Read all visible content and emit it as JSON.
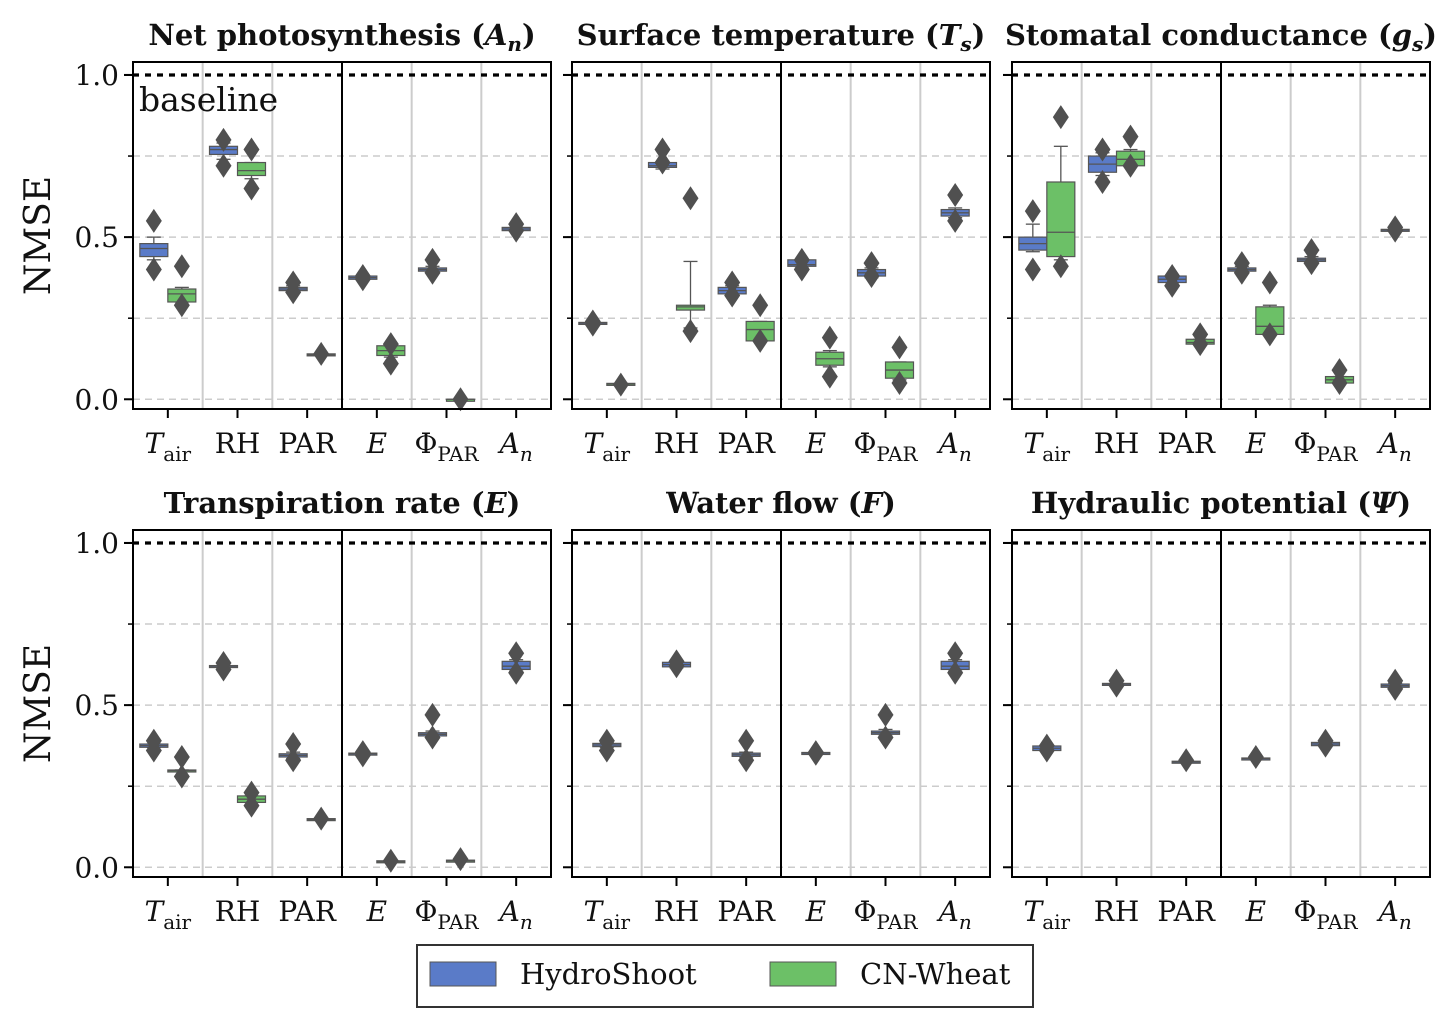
{
  "chart_data": {
    "type": "box",
    "figure": {
      "ylabel": "NMSE",
      "ylim": [
        -0.03,
        1.04
      ],
      "yticks": [
        0.0,
        0.5,
        1.0
      ],
      "ytick_labels": [
        "0.0",
        "0.5",
        "1.0"
      ],
      "minor_gridlines": [
        0.0,
        0.25,
        0.5,
        0.75
      ],
      "baseline": 1.0,
      "baseline_label": "baseline",
      "categories": [
        {
          "base": "T",
          "sub": "air",
          "italic": true
        },
        {
          "base": "RH",
          "sub": "",
          "italic": false
        },
        {
          "base": "PAR",
          "sub": "",
          "italic": false
        },
        {
          "base": "E",
          "sub": "",
          "italic": true
        },
        {
          "base": "Φ",
          "sub": "PAR",
          "italic": false
        },
        {
          "base": "A",
          "sub": "n",
          "italic": true
        }
      ],
      "legend": {
        "position": "bottom-center",
        "entries": [
          {
            "name": "HydroShoot",
            "color": "#5a7bc8"
          },
          {
            "name": "CN-Wheat",
            "color": "#6cc067"
          }
        ]
      },
      "colors": {
        "HydroShoot": "#5a7bc8",
        "CN-Wheat": "#6cc067",
        "whisker": "#555555",
        "outlier": "#505050",
        "grid": "#cccccc"
      }
    },
    "panels": [
      {
        "title": "Net photosynthesis (",
        "title_sym": "A",
        "title_sub": "n",
        "title_end": ")",
        "show_baseline_label": true,
        "show_ylabel": true,
        "show_yticklabels": true,
        "boxes": [
          {
            "cat": 0,
            "model": "HydroShoot",
            "q1": 0.44,
            "med": 0.465,
            "q3": 0.48,
            "wlo": 0.43,
            "whi": 0.5,
            "outliers": [
              0.55,
              0.4
            ]
          },
          {
            "cat": 0,
            "model": "CN-Wheat",
            "q1": 0.3,
            "med": 0.325,
            "q3": 0.34,
            "wlo": 0.3,
            "whi": 0.345,
            "outliers": [
              0.41,
              0.29
            ]
          },
          {
            "cat": 1,
            "model": "HydroShoot",
            "q1": 0.755,
            "med": 0.77,
            "q3": 0.78,
            "wlo": 0.74,
            "whi": 0.79,
            "outliers": [
              0.8,
              0.72
            ]
          },
          {
            "cat": 1,
            "model": "CN-Wheat",
            "q1": 0.69,
            "med": 0.705,
            "q3": 0.73,
            "wlo": 0.68,
            "whi": 0.73,
            "outliers": [
              0.77,
              0.65
            ]
          },
          {
            "cat": 2,
            "model": "HydroShoot",
            "q1": 0.335,
            "med": 0.34,
            "q3": 0.345,
            "wlo": 0.33,
            "whi": 0.35,
            "outliers": [
              0.36,
              0.33
            ]
          },
          {
            "cat": 2,
            "model": "CN-Wheat",
            "q1": 0.135,
            "med": 0.137,
            "q3": 0.14,
            "wlo": 0.135,
            "whi": 0.14,
            "outliers": [
              0.14
            ]
          },
          {
            "cat": 3,
            "model": "HydroShoot",
            "q1": 0.37,
            "med": 0.375,
            "q3": 0.38,
            "wlo": 0.37,
            "whi": 0.38,
            "outliers": [
              0.38,
              0.37
            ]
          },
          {
            "cat": 3,
            "model": "CN-Wheat",
            "q1": 0.135,
            "med": 0.15,
            "q3": 0.165,
            "wlo": 0.13,
            "whi": 0.17,
            "outliers": [
              0.17,
              0.11
            ]
          },
          {
            "cat": 4,
            "model": "HydroShoot",
            "q1": 0.395,
            "med": 0.4,
            "q3": 0.405,
            "wlo": 0.39,
            "whi": 0.41,
            "outliers": [
              0.43,
              0.39
            ]
          },
          {
            "cat": 4,
            "model": "CN-Wheat",
            "q1": 0.0,
            "med": 0.0,
            "q3": 0.0,
            "wlo": 0.0,
            "whi": 0.0,
            "outliers": [
              0.0
            ]
          },
          {
            "cat": 5,
            "model": "HydroShoot",
            "q1": 0.52,
            "med": 0.525,
            "q3": 0.53,
            "wlo": 0.52,
            "whi": 0.53,
            "outliers": [
              0.54,
              0.52
            ]
          }
        ]
      },
      {
        "title": "Surface temperature (",
        "title_sym": "T",
        "title_sub": "s",
        "title_end": ")",
        "show_baseline_label": false,
        "show_ylabel": false,
        "show_yticklabels": false,
        "boxes": [
          {
            "cat": 0,
            "model": "HydroShoot",
            "q1": 0.233,
            "med": 0.235,
            "q3": 0.237,
            "wlo": 0.233,
            "whi": 0.237,
            "outliers": [
              0.24,
              0.23
            ]
          },
          {
            "cat": 0,
            "model": "CN-Wheat",
            "q1": 0.045,
            "med": 0.047,
            "q3": 0.049,
            "wlo": 0.045,
            "whi": 0.049,
            "outliers": [
              0.045
            ]
          },
          {
            "cat": 1,
            "model": "HydroShoot",
            "q1": 0.715,
            "med": 0.72,
            "q3": 0.73,
            "wlo": 0.71,
            "whi": 0.73,
            "outliers": [
              0.77,
              0.73
            ]
          },
          {
            "cat": 1,
            "model": "CN-Wheat",
            "q1": 0.275,
            "med": 0.285,
            "q3": 0.29,
            "wlo": 0.22,
            "whi": 0.425,
            "outliers": [
              0.62,
              0.21
            ]
          },
          {
            "cat": 2,
            "model": "HydroShoot",
            "q1": 0.325,
            "med": 0.335,
            "q3": 0.345,
            "wlo": 0.32,
            "whi": 0.35,
            "outliers": [
              0.36,
              0.32
            ]
          },
          {
            "cat": 2,
            "model": "CN-Wheat",
            "q1": 0.18,
            "med": 0.215,
            "q3": 0.24,
            "wlo": 0.18,
            "whi": 0.24,
            "outliers": [
              0.29,
              0.18
            ]
          },
          {
            "cat": 3,
            "model": "HydroShoot",
            "q1": 0.41,
            "med": 0.415,
            "q3": 0.43,
            "wlo": 0.405,
            "whi": 0.43,
            "outliers": [
              0.43,
              0.4
            ]
          },
          {
            "cat": 3,
            "model": "CN-Wheat",
            "q1": 0.105,
            "med": 0.125,
            "q3": 0.145,
            "wlo": 0.1,
            "whi": 0.15,
            "outliers": [
              0.19,
              0.07
            ]
          },
          {
            "cat": 4,
            "model": "HydroShoot",
            "q1": 0.38,
            "med": 0.39,
            "q3": 0.4,
            "wlo": 0.375,
            "whi": 0.405,
            "outliers": [
              0.42,
              0.38
            ]
          },
          {
            "cat": 4,
            "model": "CN-Wheat",
            "q1": 0.065,
            "med": 0.09,
            "q3": 0.115,
            "wlo": 0.06,
            "whi": 0.115,
            "outliers": [
              0.16,
              0.05
            ]
          },
          {
            "cat": 5,
            "model": "HydroShoot",
            "q1": 0.565,
            "med": 0.575,
            "q3": 0.585,
            "wlo": 0.56,
            "whi": 0.59,
            "outliers": [
              0.63,
              0.55
            ]
          }
        ]
      },
      {
        "title": "Stomatal conductance (",
        "title_sym": "g",
        "title_sub": "s",
        "title_end": ")",
        "show_baseline_label": false,
        "show_ylabel": false,
        "show_yticklabels": false,
        "boxes": [
          {
            "cat": 0,
            "model": "HydroShoot",
            "q1": 0.46,
            "med": 0.48,
            "q3": 0.5,
            "wlo": 0.455,
            "whi": 0.54,
            "outliers": [
              0.58,
              0.4
            ]
          },
          {
            "cat": 0,
            "model": "CN-Wheat",
            "q1": 0.44,
            "med": 0.515,
            "q3": 0.67,
            "wlo": 0.43,
            "whi": 0.78,
            "outliers": [
              0.87,
              0.41
            ]
          },
          {
            "cat": 1,
            "model": "HydroShoot",
            "q1": 0.7,
            "med": 0.725,
            "q3": 0.75,
            "wlo": 0.69,
            "whi": 0.76,
            "outliers": [
              0.77,
              0.67
            ]
          },
          {
            "cat": 1,
            "model": "CN-Wheat",
            "q1": 0.72,
            "med": 0.74,
            "q3": 0.765,
            "wlo": 0.72,
            "whi": 0.77,
            "outliers": [
              0.81,
              0.72
            ]
          },
          {
            "cat": 2,
            "model": "HydroShoot",
            "q1": 0.36,
            "med": 0.37,
            "q3": 0.38,
            "wlo": 0.36,
            "whi": 0.38,
            "outliers": [
              0.38,
              0.35
            ]
          },
          {
            "cat": 2,
            "model": "CN-Wheat",
            "q1": 0.17,
            "med": 0.175,
            "q3": 0.185,
            "wlo": 0.17,
            "whi": 0.185,
            "outliers": [
              0.2,
              0.17
            ]
          },
          {
            "cat": 3,
            "model": "HydroShoot",
            "q1": 0.395,
            "med": 0.4,
            "q3": 0.405,
            "wlo": 0.39,
            "whi": 0.41,
            "outliers": [
              0.42,
              0.39
            ]
          },
          {
            "cat": 3,
            "model": "CN-Wheat",
            "q1": 0.2,
            "med": 0.225,
            "q3": 0.285,
            "wlo": 0.2,
            "whi": 0.29,
            "outliers": [
              0.36,
              0.2
            ]
          },
          {
            "cat": 4,
            "model": "HydroShoot",
            "q1": 0.425,
            "med": 0.43,
            "q3": 0.435,
            "wlo": 0.42,
            "whi": 0.44,
            "outliers": [
              0.46,
              0.42
            ]
          },
          {
            "cat": 4,
            "model": "CN-Wheat",
            "q1": 0.05,
            "med": 0.06,
            "q3": 0.07,
            "wlo": 0.05,
            "whi": 0.07,
            "outliers": [
              0.09,
              0.05
            ]
          },
          {
            "cat": 5,
            "model": "HydroShoot",
            "q1": 0.52,
            "med": 0.522,
            "q3": 0.524,
            "wlo": 0.52,
            "whi": 0.524,
            "outliers": [
              0.53,
              0.52
            ]
          }
        ]
      },
      {
        "title": "Transpiration rate (",
        "title_sym": "E",
        "title_sub": "",
        "title_end": ")",
        "show_baseline_label": false,
        "show_ylabel": true,
        "show_yticklabels": true,
        "boxes": [
          {
            "cat": 0,
            "model": "HydroShoot",
            "q1": 0.37,
            "med": 0.375,
            "q3": 0.38,
            "wlo": 0.37,
            "whi": 0.38,
            "outliers": [
              0.39,
              0.36
            ]
          },
          {
            "cat": 0,
            "model": "CN-Wheat",
            "q1": 0.295,
            "med": 0.298,
            "q3": 0.3,
            "wlo": 0.295,
            "whi": 0.3,
            "outliers": [
              0.34,
              0.28
            ]
          },
          {
            "cat": 1,
            "model": "HydroShoot",
            "q1": 0.618,
            "med": 0.62,
            "q3": 0.622,
            "wlo": 0.618,
            "whi": 0.622,
            "outliers": [
              0.63,
              0.61
            ]
          },
          {
            "cat": 1,
            "model": "CN-Wheat",
            "q1": 0.2,
            "med": 0.21,
            "q3": 0.22,
            "wlo": 0.2,
            "whi": 0.22,
            "outliers": [
              0.23,
              0.19
            ]
          },
          {
            "cat": 2,
            "model": "HydroShoot",
            "q1": 0.34,
            "med": 0.345,
            "q3": 0.35,
            "wlo": 0.335,
            "whi": 0.355,
            "outliers": [
              0.38,
              0.33
            ]
          },
          {
            "cat": 2,
            "model": "CN-Wheat",
            "q1": 0.145,
            "med": 0.147,
            "q3": 0.15,
            "wlo": 0.145,
            "whi": 0.15,
            "outliers": [
              0.15
            ]
          },
          {
            "cat": 3,
            "model": "HydroShoot",
            "q1": 0.348,
            "med": 0.35,
            "q3": 0.352,
            "wlo": 0.348,
            "whi": 0.352,
            "outliers": [
              0.355,
              0.345
            ]
          },
          {
            "cat": 3,
            "model": "CN-Wheat",
            "q1": 0.015,
            "med": 0.017,
            "q3": 0.02,
            "wlo": 0.015,
            "whi": 0.02,
            "outliers": [
              0.02
            ]
          },
          {
            "cat": 4,
            "model": "HydroShoot",
            "q1": 0.405,
            "med": 0.41,
            "q3": 0.415,
            "wlo": 0.4,
            "whi": 0.42,
            "outliers": [
              0.47,
              0.4
            ]
          },
          {
            "cat": 4,
            "model": "CN-Wheat",
            "q1": 0.018,
            "med": 0.02,
            "q3": 0.022,
            "wlo": 0.018,
            "whi": 0.022,
            "outliers": [
              0.025
            ]
          },
          {
            "cat": 5,
            "model": "HydroShoot",
            "q1": 0.61,
            "med": 0.62,
            "q3": 0.635,
            "wlo": 0.605,
            "whi": 0.64,
            "outliers": [
              0.66,
              0.6
            ]
          }
        ]
      },
      {
        "title": "Water flow (",
        "title_sym": "F",
        "title_sub": "",
        "title_end": ")",
        "show_baseline_label": false,
        "show_ylabel": false,
        "show_yticklabels": false,
        "boxes": [
          {
            "cat": 0,
            "model": "HydroShoot",
            "q1": 0.372,
            "med": 0.377,
            "q3": 0.382,
            "wlo": 0.37,
            "whi": 0.385,
            "outliers": [
              0.39,
              0.36
            ]
          },
          {
            "cat": 1,
            "model": "HydroShoot",
            "q1": 0.618,
            "med": 0.625,
            "q3": 0.632,
            "wlo": 0.615,
            "whi": 0.635,
            "outliers": [
              0.635,
              0.62
            ]
          },
          {
            "cat": 2,
            "model": "HydroShoot",
            "q1": 0.342,
            "med": 0.347,
            "q3": 0.352,
            "wlo": 0.34,
            "whi": 0.355,
            "outliers": [
              0.39,
              0.33
            ]
          },
          {
            "cat": 3,
            "model": "HydroShoot",
            "q1": 0.35,
            "med": 0.352,
            "q3": 0.354,
            "wlo": 0.35,
            "whi": 0.354,
            "outliers": [
              0.355,
              0.35
            ]
          },
          {
            "cat": 4,
            "model": "HydroShoot",
            "q1": 0.41,
            "med": 0.415,
            "q3": 0.42,
            "wlo": 0.405,
            "whi": 0.425,
            "outliers": [
              0.47,
              0.4
            ]
          },
          {
            "cat": 5,
            "model": "HydroShoot",
            "q1": 0.61,
            "med": 0.62,
            "q3": 0.635,
            "wlo": 0.605,
            "whi": 0.64,
            "outliers": [
              0.66,
              0.6
            ]
          }
        ]
      },
      {
        "title": "Hydraulic potential (",
        "title_sym": "Ψ",
        "title_sub": "",
        "title_end": ")",
        "show_baseline_label": false,
        "show_ylabel": false,
        "show_yticklabels": false,
        "boxes": [
          {
            "cat": 0,
            "model": "HydroShoot",
            "q1": 0.36,
            "med": 0.367,
            "q3": 0.374,
            "wlo": 0.36,
            "whi": 0.374,
            "outliers": [
              0.375,
              0.36
            ]
          },
          {
            "cat": 1,
            "model": "HydroShoot",
            "q1": 0.563,
            "med": 0.565,
            "q3": 0.567,
            "wlo": 0.563,
            "whi": 0.567,
            "outliers": [
              0.575,
              0.56
            ]
          },
          {
            "cat": 2,
            "model": "HydroShoot",
            "q1": 0.323,
            "med": 0.325,
            "q3": 0.327,
            "wlo": 0.323,
            "whi": 0.327,
            "outliers": [
              0.33
            ]
          },
          {
            "cat": 3,
            "model": "HydroShoot",
            "q1": 0.333,
            "med": 0.335,
            "q3": 0.337,
            "wlo": 0.333,
            "whi": 0.337,
            "outliers": [
              0.34
            ]
          },
          {
            "cat": 4,
            "model": "HydroShoot",
            "q1": 0.375,
            "med": 0.38,
            "q3": 0.385,
            "wlo": 0.372,
            "whi": 0.388,
            "outliers": [
              0.39,
              0.375
            ]
          },
          {
            "cat": 5,
            "model": "HydroShoot",
            "q1": 0.555,
            "med": 0.56,
            "q3": 0.565,
            "wlo": 0.552,
            "whi": 0.568,
            "outliers": [
              0.575,
              0.55
            ]
          }
        ]
      }
    ]
  }
}
